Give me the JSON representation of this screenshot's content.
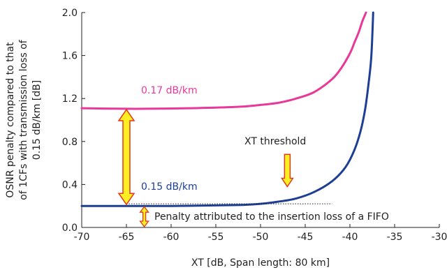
{
  "chart_data": {
    "type": "line",
    "xlabel": "XT [dB, Span length: 80 km]",
    "ylabel_lines": [
      "OSNR penalty compared to that",
      "of 1CFs with transmission loss of",
      "0.15 dB/km [dB]"
    ],
    "xlim": [
      -70,
      -30
    ],
    "ylim": [
      0,
      2.0
    ],
    "x_ticks": [
      "-70",
      "-65",
      "-60",
      "-55",
      "-50",
      "-45",
      "-40",
      "-35",
      "-30"
    ],
    "y_ticks": [
      "0.0",
      "0.4",
      "0.8",
      "1.2",
      "1.6",
      "2.0"
    ],
    "grid": false,
    "series": [
      {
        "name": "0.17 dB/km",
        "color": "#e8399a",
        "x": [
          -70,
          -66,
          -62,
          -58,
          -55,
          -52,
          -50,
          -48,
          -46,
          -44,
          -42,
          -41,
          -40,
          -39.5,
          -39,
          -38.6,
          -38.2
        ],
        "y": [
          1.11,
          1.105,
          1.105,
          1.11,
          1.115,
          1.125,
          1.14,
          1.16,
          1.2,
          1.26,
          1.38,
          1.48,
          1.62,
          1.72,
          1.82,
          1.92,
          2.0
        ]
      },
      {
        "name": "0.15 dB/km",
        "color": "#1c3f94",
        "x": [
          -70,
          -65,
          -60,
          -55,
          -52,
          -50,
          -48,
          -46,
          -44,
          -42,
          -40.5,
          -39.5,
          -38.8,
          -38.3,
          -37.9,
          -37.6,
          -37.4
        ],
        "y": [
          0.2,
          0.2,
          0.2,
          0.205,
          0.21,
          0.22,
          0.24,
          0.27,
          0.33,
          0.43,
          0.56,
          0.72,
          0.9,
          1.1,
          1.35,
          1.6,
          2.0
        ]
      }
    ],
    "annotations": {
      "label_017": "0.17 dB/km",
      "label_015": "0.15 dB/km",
      "xt_threshold": "XT threshold",
      "fifo_penalty": "Penalty attributed to the insertion loss of a FIFO"
    },
    "markers": {
      "big_arrow_x": -65,
      "big_arrow_y": [
        0.2,
        1.11
      ],
      "small_arrow_x": -63,
      "small_arrow_y": [
        0.0,
        0.2
      ],
      "threshold_arrow_x": -47,
      "threshold_arrow_y": [
        0.38,
        0.68
      ],
      "dotted_line_x": [
        -65,
        -42
      ],
      "dotted_line_y": 0.22
    },
    "arrow_fill": "#ffee22",
    "arrow_stroke": "#e03a1e"
  }
}
